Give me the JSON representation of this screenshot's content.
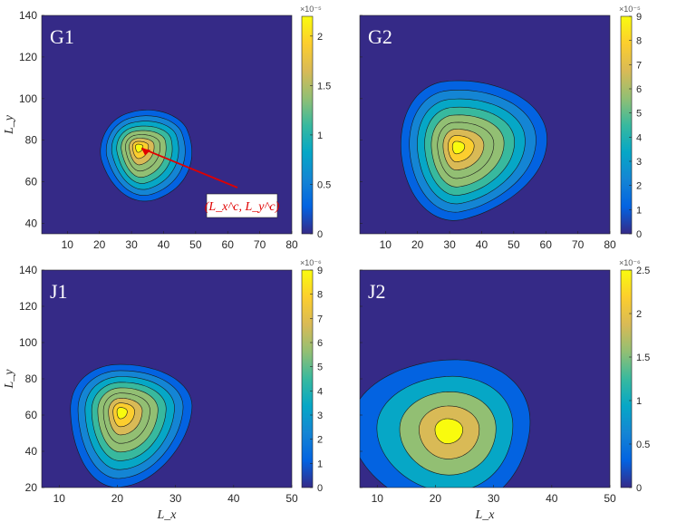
{
  "colors": {
    "background": "#352a87",
    "contour_line": "#1a1a1a",
    "annotation": "#e00000",
    "label_text": "#ffffff"
  },
  "colormap": [
    "#352a87",
    "#0363e1",
    "#1485d4",
    "#06a7c6",
    "#38b99e",
    "#92bf73",
    "#d9ba56",
    "#fcce2e",
    "#f9fb0e"
  ],
  "chart_data": [
    {
      "type": "contour",
      "panel": "G1",
      "label": "G1",
      "xlim": [
        2,
        80
      ],
      "ylim": [
        35,
        140
      ],
      "xticks": [
        "10",
        "20",
        "30",
        "40",
        "50",
        "60",
        "70",
        "80"
      ],
      "yticks": [
        "40",
        "60",
        "80",
        "100",
        "120",
        "140"
      ],
      "xlabel": "",
      "ylabel": "L_y",
      "colorbar": {
        "max": 2.2,
        "ticks": [
          "0",
          "0.5",
          "1",
          "1.5",
          "2"
        ],
        "exponent": "×10⁻⁵"
      },
      "peak": {
        "x": 32,
        "y": 77
      },
      "annotation": "(L_x^c, L_y^c)"
    },
    {
      "type": "contour",
      "panel": "G2",
      "label": "G2",
      "xlim": [
        2,
        80
      ],
      "ylim": [
        35,
        140
      ],
      "xticks": [
        "10",
        "20",
        "30",
        "40",
        "50",
        "60",
        "70",
        "80"
      ],
      "yticks": [],
      "xlabel": "",
      "ylabel": "",
      "colorbar": {
        "max": 9,
        "ticks": [
          "0",
          "1",
          "2",
          "3",
          "4",
          "5",
          "6",
          "7",
          "8",
          "9"
        ],
        "exponent": "×10⁻⁵"
      },
      "peak": {
        "x": 32,
        "y": 77
      }
    },
    {
      "type": "contour",
      "panel": "J1",
      "label": "J1",
      "xlim": [
        7,
        50
      ],
      "ylim": [
        20,
        140
      ],
      "xticks": [
        "10",
        "20",
        "30",
        "40",
        "50"
      ],
      "yticks": [
        "20",
        "40",
        "60",
        "80",
        "100",
        "120",
        "140"
      ],
      "xlabel": "L_x",
      "ylabel": "L_y",
      "colorbar": {
        "max": 9,
        "ticks": [
          "0",
          "1",
          "2",
          "3",
          "4",
          "5",
          "6",
          "7",
          "8",
          "9"
        ],
        "exponent": "×10⁻⁶"
      },
      "peak": {
        "x": 20.5,
        "y": 62
      }
    },
    {
      "type": "contour",
      "panel": "J2",
      "label": "J2",
      "xlim": [
        7,
        50
      ],
      "ylim": [
        20,
        140
      ],
      "xticks": [
        "10",
        "20",
        "30",
        "40",
        "50"
      ],
      "yticks": [],
      "xlabel": "L_x",
      "ylabel": "",
      "colorbar": {
        "max": 2.5,
        "ticks": [
          "0",
          "0.5",
          "1",
          "1.5",
          "2",
          "2.5"
        ],
        "exponent": "×10⁻⁶"
      },
      "peak": {
        "x": 22,
        "y": 52
      }
    }
  ]
}
